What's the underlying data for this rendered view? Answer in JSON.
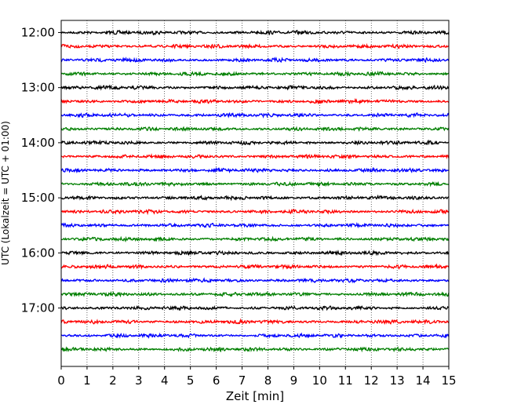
{
  "chart_data": {
    "type": "line",
    "title": "",
    "xlabel": "Zeit  [min]",
    "ylabel": "UTC (Lokalzeit = UTC + 01:00)",
    "xlim": [
      0,
      15
    ],
    "x_ticks": [
      0,
      1,
      2,
      3,
      4,
      5,
      6,
      7,
      8,
      9,
      10,
      11,
      12,
      13,
      14,
      15
    ],
    "x_tick_labels": [
      "0",
      "1",
      "2",
      "3",
      "4",
      "5",
      "6",
      "7",
      "8",
      "9",
      "10",
      "11",
      "12",
      "13",
      "14",
      "15"
    ],
    "ylim_hours": [
      11.78,
      18.06
    ],
    "y_ticks_hours": [
      12,
      13,
      14,
      15,
      16,
      17
    ],
    "y_tick_labels": [
      "12:00",
      "13:00",
      "14:00",
      "15:00",
      "16:00",
      "17:00"
    ],
    "grid_x": true,
    "grid_y": false,
    "trace_interval_min": 15,
    "trace_duration_min": 15,
    "trace_colors": [
      "#000000",
      "#ff0000",
      "#0000ff",
      "#007f00"
    ],
    "traces": [
      {
        "start": "12:00",
        "color": "#000000"
      },
      {
        "start": "12:15",
        "color": "#ff0000"
      },
      {
        "start": "12:30",
        "color": "#0000ff"
      },
      {
        "start": "12:45",
        "color": "#007f00"
      },
      {
        "start": "13:00",
        "color": "#000000"
      },
      {
        "start": "13:15",
        "color": "#ff0000"
      },
      {
        "start": "13:30",
        "color": "#0000ff"
      },
      {
        "start": "13:45",
        "color": "#007f00"
      },
      {
        "start": "14:00",
        "color": "#000000"
      },
      {
        "start": "14:15",
        "color": "#ff0000"
      },
      {
        "start": "14:30",
        "color": "#0000ff"
      },
      {
        "start": "14:45",
        "color": "#007f00"
      },
      {
        "start": "15:00",
        "color": "#000000"
      },
      {
        "start": "15:15",
        "color": "#ff0000"
      },
      {
        "start": "15:30",
        "color": "#0000ff"
      },
      {
        "start": "15:45",
        "color": "#007f00"
      },
      {
        "start": "16:00",
        "color": "#000000"
      },
      {
        "start": "16:15",
        "color": "#ff0000"
      },
      {
        "start": "16:30",
        "color": "#0000ff"
      },
      {
        "start": "16:45",
        "color": "#007f00"
      },
      {
        "start": "17:00",
        "color": "#000000"
      },
      {
        "start": "17:15",
        "color": "#ff0000"
      },
      {
        "start": "17:30",
        "color": "#0000ff"
      },
      {
        "start": "17:45",
        "color": "#007f00"
      }
    ]
  }
}
